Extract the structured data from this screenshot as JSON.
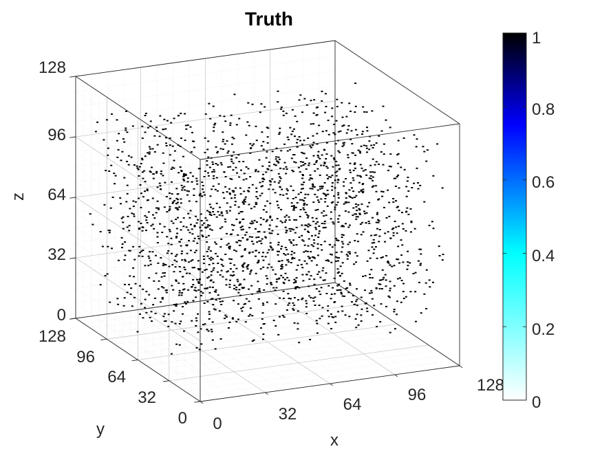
{
  "chart_data": {
    "type": "scatter",
    "title": "Truth",
    "xlabel": "x",
    "ylabel": "y",
    "zlabel": "z",
    "xlim": [
      0,
      128
    ],
    "ylim": [
      0,
      128
    ],
    "zlim": [
      0,
      128
    ],
    "x_ticks": [
      "0",
      "32",
      "64",
      "96",
      "128"
    ],
    "y_ticks": [
      "0",
      "32",
      "64",
      "96",
      "128"
    ],
    "z_ticks": [
      "0",
      "32",
      "64",
      "96",
      "128"
    ],
    "grid": true,
    "marker_color": "#000000",
    "series": [
      {
        "name": "Truth",
        "value": 1,
        "distribution": "uniform random points filling the cube",
        "x_range": [
          0,
          128
        ],
        "y_range": [
          14,
          114
        ],
        "z_range": [
          14,
          114
        ],
        "count": 2000
      }
    ],
    "colorbar": {
      "min": 0,
      "max": 1,
      "ticks": [
        "0",
        "0.2",
        "0.4",
        "0.6",
        "0.8",
        "1"
      ],
      "colors": [
        "#ffffff",
        "#00ffff",
        "#0000ff",
        "#000000"
      ]
    }
  }
}
